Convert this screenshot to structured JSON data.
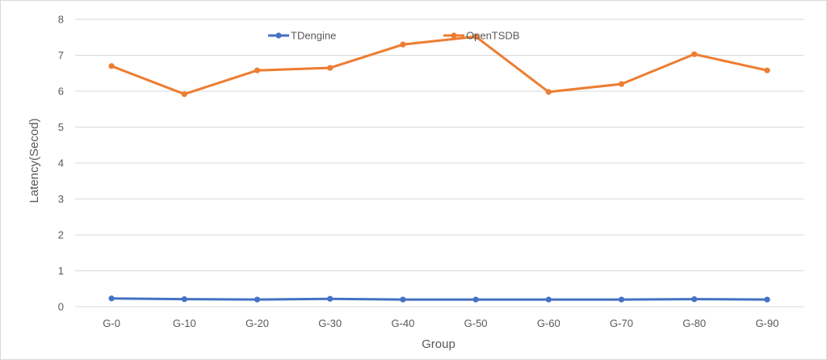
{
  "chart_data": {
    "type": "line",
    "title": "",
    "xlabel": "Group",
    "ylabel": "Latency(Secod)",
    "categories": [
      "G-0",
      "G-10",
      "G-20",
      "G-30",
      "G-40",
      "G-50",
      "G-60",
      "G-70",
      "G-80",
      "G-90"
    ],
    "ylim": [
      0,
      8
    ],
    "yticks": [
      "0",
      "1",
      "2",
      "3",
      "4",
      "5",
      "6",
      "7",
      "8"
    ],
    "grid": "horizontal",
    "legend_position": "top-center",
    "series": [
      {
        "name": "TDengine",
        "color": "#4472c4",
        "values": [
          0.23,
          0.21,
          0.2,
          0.22,
          0.2,
          0.2,
          0.2,
          0.2,
          0.21,
          0.2
        ]
      },
      {
        "name": "OpenTSDB",
        "color": "#ed7d31",
        "values": [
          6.7,
          5.92,
          6.58,
          6.65,
          7.3,
          7.52,
          5.98,
          6.2,
          7.03,
          6.58
        ]
      }
    ]
  }
}
